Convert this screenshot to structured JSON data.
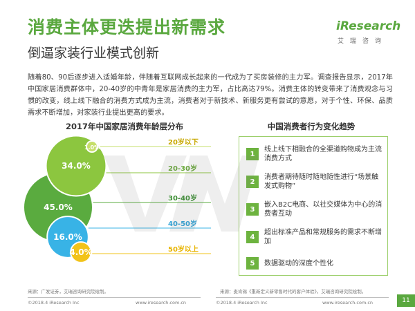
{
  "header": {
    "title": "消费主体更迭提出新需求",
    "subtitle": "倒逼家装行业模式创新"
  },
  "logo": {
    "word": "iResearch",
    "sub": "艾瑞咨询"
  },
  "intro": "随着80、90后逐步进入适婚年龄，伴随着互联网成长起来的一代成为了买房装修的主力军。调查报告显示，2017年中国家居消费群体中，20-40岁的中青年是家居消费的主力军，占比高达79%。消费主体的转变带来了消费观念与习惯的改变，线上线下融合的消费方式成为主流，消费者对于新技术、新服务更有尝试的意愿，对于个性、环保、品质需求不断增加，对家装行业提出更高的要求。",
  "chart_data": {
    "type": "bubble",
    "title": "2017年中国家居消费年龄层分布",
    "categories": [
      "20岁以下",
      "20-30岁",
      "30-40岁",
      "40-50岁",
      "50岁以上"
    ],
    "values": [
      1.0,
      34.0,
      45.0,
      16.0,
      4.0
    ],
    "value_labels": [
      "1.0%",
      "34.0%",
      "45.0%",
      "16.0%",
      "4.0%"
    ],
    "colors": [
      "#c6df6a",
      "#8cc63f",
      "#5aab3f",
      "#38b3e6",
      "#f2c31a"
    ],
    "label_colors": [
      "#c8a800",
      "#6aa93c",
      "#3d8f35",
      "#2ea3d8",
      "#e8b400"
    ]
  },
  "trend": {
    "title": "中国消费者行为变化趋势",
    "items": [
      {
        "num": "1",
        "text": "线上线下相融合的全渠道购物成为主流消费方式"
      },
      {
        "num": "2",
        "text": "消费者期待随时随地随性进行“场景触发式购物”"
      },
      {
        "num": "3",
        "text": "嵌入B2C电商、以社交媒体为中心的消费者互动"
      },
      {
        "num": "4",
        "text": "超出标准产品和常规服务的需求不断增加"
      },
      {
        "num": "5",
        "text": "数据驱动的深度个性化"
      }
    ]
  },
  "sources": {
    "left": "来源：广发证券，艾瑞咨询研究院绘制。",
    "right": "来源：麦肯锡《重新定义新零售时代的客户体验》，艾瑞咨询研究院绘制。"
  },
  "footer": {
    "copyright_left": "©2018.4 iResearch Inc",
    "url_left": "www.iresearch.com.cn",
    "copyright_right": "©2018.4 iResearch Inc",
    "url_right": "www.iresearch.com.cn",
    "page": "11"
  }
}
